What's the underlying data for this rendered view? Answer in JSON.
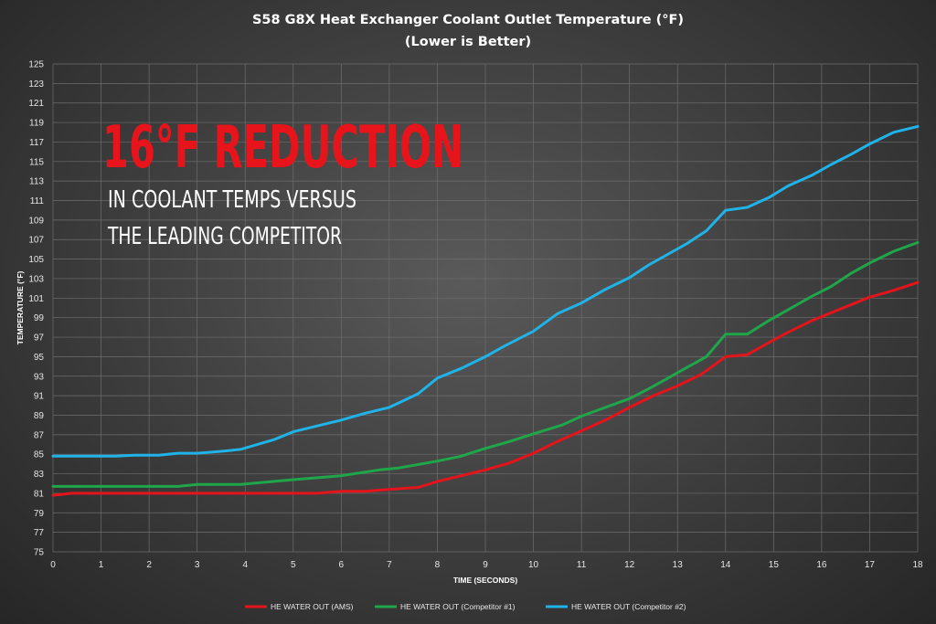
{
  "chart_data": {
    "type": "line",
    "title": "S58 G8X Heat Exchanger Coolant Outlet Temperature (°F)",
    "subtitle": "(Lower is Better)",
    "xlabel": "TIME (SECONDS)",
    "ylabel": "TEMPERATURE (°F)",
    "xlim": [
      0,
      18
    ],
    "ylim": [
      75,
      125
    ],
    "xticks": [
      "0",
      "1",
      "2",
      "3",
      "4",
      "5",
      "6",
      "7",
      "8",
      "9",
      "10",
      "11",
      "12",
      "13",
      "14",
      "15",
      "16",
      "17",
      "18"
    ],
    "yticks": [
      "75",
      "77",
      "79",
      "81",
      "83",
      "85",
      "87",
      "89",
      "91",
      "93",
      "95",
      "97",
      "99",
      "101",
      "103",
      "105",
      "107",
      "109",
      "111",
      "113",
      "115",
      "117",
      "119",
      "121",
      "123",
      "125"
    ],
    "grid": true,
    "legend_position": "bottom",
    "annotation": {
      "headline": "16°F REDUCTION",
      "line1": "IN COOLANT TEMPS VERSUS",
      "line2": "THE LEADING COMPETITOR"
    },
    "series": [
      {
        "name": "HE WATER OUT (AMS)",
        "color": "#e3141b",
        "x": [
          0,
          0.4,
          1,
          2,
          3,
          4,
          5,
          5.5,
          6,
          6.5,
          7,
          7.6,
          8,
          8.5,
          9,
          9.5,
          10,
          10.5,
          11,
          11.5,
          12,
          12.5,
          13,
          13.5,
          14,
          14.45,
          14.85,
          15.3,
          15.8,
          16.2,
          16.6,
          17,
          17.5,
          18
        ],
        "y": [
          80.8,
          81.0,
          81.0,
          81.0,
          81.0,
          81.0,
          81.0,
          81.0,
          81.2,
          81.2,
          81.4,
          81.6,
          82.2,
          82.8,
          83.4,
          84.1,
          85.1,
          86.3,
          87.4,
          88.5,
          89.8,
          91.0,
          92.0,
          93.2,
          95.0,
          95.2,
          96.3,
          97.5,
          98.7,
          99.5,
          100.3,
          101.1,
          101.8,
          102.6
        ]
      },
      {
        "name": "HE WATER OUT (Competitor #1)",
        "color": "#1fa64a",
        "x": [
          0,
          1,
          2,
          2.6,
          3,
          3.9,
          5,
          6,
          6.8,
          7.2,
          8,
          8.5,
          9,
          9.5,
          10,
          10.6,
          11,
          11.5,
          12,
          12.4,
          12.8,
          13.2,
          13.6,
          14,
          14.45,
          14.9,
          15.3,
          15.8,
          16.2,
          16.6,
          17,
          17.5,
          18
        ],
        "y": [
          81.7,
          81.7,
          81.7,
          81.7,
          81.9,
          81.9,
          82.4,
          82.8,
          83.4,
          83.6,
          84.3,
          84.8,
          85.6,
          86.3,
          87.1,
          88.0,
          88.9,
          89.8,
          90.7,
          91.7,
          92.8,
          93.9,
          95.0,
          97.3,
          97.3,
          98.7,
          99.8,
          101.2,
          102.2,
          103.5,
          104.6,
          105.8,
          106.7
        ]
      },
      {
        "name": "HE WATER OUT (Competitor #2)",
        "color": "#1fb3e8",
        "x": [
          0,
          0.6,
          1.3,
          1.7,
          2.2,
          2.6,
          3,
          3.5,
          3.9,
          4.6,
          5,
          5.5,
          6,
          6.5,
          7,
          7.6,
          8,
          8.5,
          9,
          9.4,
          10,
          10.5,
          11,
          11.5,
          12,
          12.4,
          12.8,
          13.2,
          13.6,
          14,
          14.45,
          14.9,
          15.3,
          15.8,
          16.2,
          16.6,
          17,
          17.5,
          18
        ],
        "y": [
          84.8,
          84.8,
          84.8,
          84.9,
          84.9,
          85.1,
          85.1,
          85.3,
          85.5,
          86.5,
          87.3,
          87.9,
          88.5,
          89.2,
          89.8,
          91.2,
          92.8,
          93.8,
          95.0,
          96.1,
          97.6,
          99.4,
          100.5,
          101.9,
          103.1,
          104.4,
          105.5,
          106.6,
          107.9,
          110.0,
          110.3,
          111.3,
          112.5,
          113.6,
          114.7,
          115.7,
          116.8,
          118.0,
          118.6
        ]
      }
    ]
  }
}
